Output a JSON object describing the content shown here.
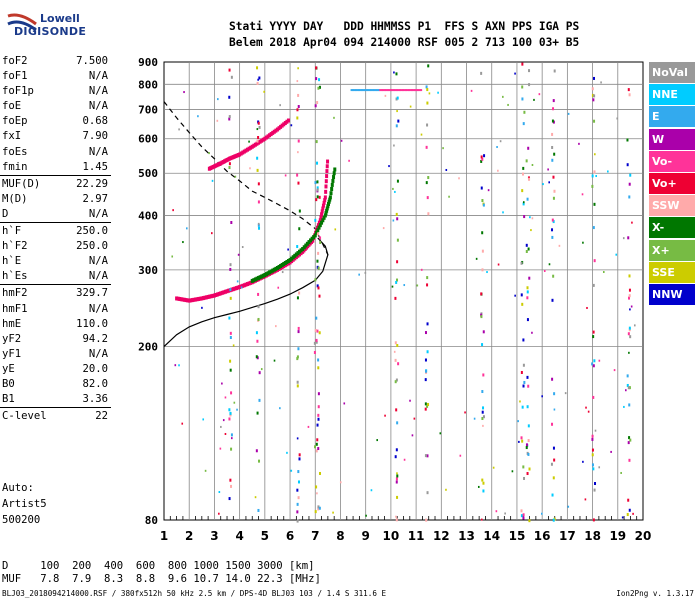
{
  "logo": {
    "line1": "Lowell",
    "line2": "DIGISONDE"
  },
  "header": {
    "line1": "Stati YYYY DAY   DDD HHMMSS P1  FFS S AXN PPS IGA PS",
    "line2": "Belem 2018 Apr04 094 214000 RSF 005 2 713 100 03+ B5"
  },
  "params": [
    {
      "name": "foF2",
      "value": "7.500"
    },
    {
      "name": "foF1",
      "value": "N/A"
    },
    {
      "name": "foF1p",
      "value": "N/A"
    },
    {
      "name": "foE",
      "value": "N/A"
    },
    {
      "name": "foEp",
      "value": "0.68"
    },
    {
      "name": "fxI",
      "value": "7.90"
    },
    {
      "name": "foEs",
      "value": "N/A"
    },
    {
      "name": "fmin",
      "value": "1.45"
    },
    {
      "name": "MUF(D)",
      "value": "22.29"
    },
    {
      "name": "M(D)",
      "value": "2.97"
    },
    {
      "name": "D",
      "value": "N/A"
    },
    {
      "name": "h`F",
      "value": "250.0"
    },
    {
      "name": "h`F2",
      "value": "250.0"
    },
    {
      "name": "h`E",
      "value": "N/A"
    },
    {
      "name": "h`Es",
      "value": "N/A"
    },
    {
      "name": "hmF2",
      "value": "329.7"
    },
    {
      "name": "hmF1",
      "value": "N/A"
    },
    {
      "name": "hmE",
      "value": "110.0"
    },
    {
      "name": "yF2",
      "value": "94.2"
    },
    {
      "name": "yF1",
      "value": "N/A"
    },
    {
      "name": "yE",
      "value": "20.0"
    },
    {
      "name": "B0",
      "value": "82.0"
    },
    {
      "name": "B1",
      "value": "3.36"
    },
    {
      "name": "C-level",
      "value": "22"
    }
  ],
  "auto": {
    "line1": "Auto:",
    "line2": "Artist5",
    "line3": "500200"
  },
  "legend": [
    {
      "label": "NoVal",
      "color": "#999999"
    },
    {
      "label": "NNE",
      "color": "#00ccff"
    },
    {
      "label": "E",
      "color": "#33aaee"
    },
    {
      "label": "W",
      "color": "#aa00aa"
    },
    {
      "label": "Vo-",
      "color": "#ff3399"
    },
    {
      "label": "Vo+",
      "color": "#ee0033"
    },
    {
      "label": "SSW",
      "color": "#ffaaaa"
    },
    {
      "label": "X-",
      "color": "#007700"
    },
    {
      "label": "X+",
      "color": "#77bb44"
    },
    {
      "label": "SSE",
      "color": "#cccc00"
    },
    {
      "label": "NNW",
      "color": "#0000cc"
    }
  ],
  "muf_table": {
    "line1": "D     100  200  400  600  800 1000 1500 3000 [km]",
    "line2": "MUF   7.8  7.9  8.3  8.8  9.6 10.7 14.0 22.3 [MHz]"
  },
  "footer": {
    "left": "BLJ03_2018094214000.RSF / 380fx512h 50 kHz 2.5 km / DPS-4D BLJ03 103 / 1.4 S 311.6 E",
    "right": "Ion2Png v. 1.3.17"
  },
  "chart_data": {
    "type": "scatter",
    "xlim": [
      1,
      20
    ],
    "ylim": [
      80,
      900
    ],
    "x_ticks": [
      "1",
      "2",
      "3",
      "4",
      "5",
      "6",
      "7",
      "8",
      "9",
      "10",
      "11",
      "12",
      "13",
      "14",
      "15",
      "16",
      "17",
      "18",
      "19",
      "20"
    ],
    "y_ticks": [
      "80",
      "200",
      "300",
      "400",
      "500",
      "600",
      "700",
      "800",
      "900"
    ],
    "grid": true,
    "y_scale": "log",
    "traces": [
      {
        "name": "O-trace",
        "color": "#ee0066",
        "points": [
          [
            1.5,
            258
          ],
          [
            2.0,
            255
          ],
          [
            2.5,
            258
          ],
          [
            3.0,
            262
          ],
          [
            3.5,
            268
          ],
          [
            4.0,
            274
          ],
          [
            4.5,
            281
          ],
          [
            5.0,
            290
          ],
          [
            5.5,
            300
          ],
          [
            6.0,
            312
          ],
          [
            6.5,
            330
          ],
          [
            6.9,
            350
          ],
          [
            7.2,
            390
          ],
          [
            7.4,
            440
          ],
          [
            7.5,
            545
          ]
        ]
      },
      {
        "name": "X-trace",
        "color": "#007700",
        "points": [
          [
            4.5,
            283
          ],
          [
            5.0,
            292
          ],
          [
            5.5,
            303
          ],
          [
            6.0,
            316
          ],
          [
            6.5,
            335
          ],
          [
            7.0,
            360
          ],
          [
            7.4,
            400
          ],
          [
            7.6,
            440
          ],
          [
            7.8,
            520
          ]
        ]
      },
      {
        "name": "F1-echo",
        "color": "#ee0066",
        "points": [
          [
            2.8,
            512
          ],
          [
            3.2,
            525
          ],
          [
            3.6,
            540
          ],
          [
            4.0,
            552
          ],
          [
            4.5,
            575
          ],
          [
            5.0,
            600
          ],
          [
            5.5,
            630
          ],
          [
            6.0,
            665
          ]
        ]
      }
    ],
    "profile_solid": [
      [
        1.0,
        200
      ],
      [
        1.5,
        213
      ],
      [
        2.0,
        222
      ],
      [
        2.5,
        228
      ],
      [
        3.0,
        233
      ],
      [
        3.5,
        237
      ],
      [
        4.0,
        241
      ],
      [
        4.5,
        246
      ],
      [
        5.0,
        251
      ],
      [
        5.5,
        257
      ],
      [
        6.0,
        264
      ],
      [
        6.5,
        273
      ],
      [
        7.0,
        284
      ],
      [
        7.3,
        298
      ],
      [
        7.5,
        325
      ],
      [
        7.4,
        340
      ],
      [
        7.1,
        355
      ]
    ],
    "profile_dashed": [
      [
        1.0,
        730
      ],
      [
        1.5,
        670
      ],
      [
        2.0,
        620
      ],
      [
        2.5,
        575
      ],
      [
        3.0,
        540
      ],
      [
        3.5,
        505
      ],
      [
        4.0,
        480
      ],
      [
        4.5,
        455
      ],
      [
        5.0,
        440
      ],
      [
        5.5,
        425
      ],
      [
        6.0,
        410
      ],
      [
        6.5,
        393
      ],
      [
        7.0,
        373
      ],
      [
        7.5,
        325
      ]
    ]
  }
}
